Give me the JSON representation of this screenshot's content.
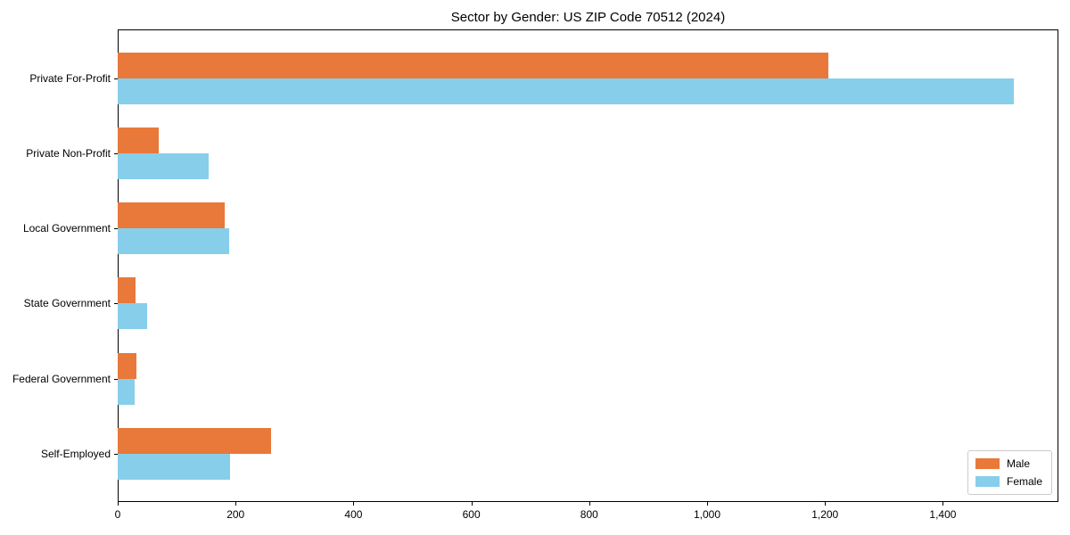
{
  "chart_data": {
    "type": "bar",
    "orientation": "horizontal",
    "title": "Sector by Gender: US ZIP Code 70512 (2024)",
    "categories": [
      "Private For-Profit",
      "Private Non-Profit",
      "Local Government",
      "State Government",
      "Federal Government",
      "Self-Employed"
    ],
    "series": [
      {
        "name": "Male",
        "color": "#E8793A",
        "values": [
          1205,
          70,
          182,
          30,
          32,
          260
        ]
      },
      {
        "name": "Female",
        "color": "#87CEEB",
        "values": [
          1520,
          155,
          189,
          50,
          28,
          191
        ]
      }
    ],
    "xlabel": "",
    "ylabel": "",
    "xlim": [
      0,
      1596
    ],
    "xticks": [
      0,
      200,
      400,
      600,
      800,
      1000,
      1200,
      1400
    ],
    "xtick_labels": [
      "0",
      "200",
      "400",
      "600",
      "800",
      "1,000",
      "1,200",
      "1,400"
    ],
    "grid": false,
    "legend": {
      "position": "lower right",
      "entries": [
        {
          "label": "Male",
          "color": "#E8793A"
        },
        {
          "label": "Female",
          "color": "#87CEEB"
        }
      ]
    },
    "axis_color": "#000000",
    "background_color": "#ffffff"
  }
}
